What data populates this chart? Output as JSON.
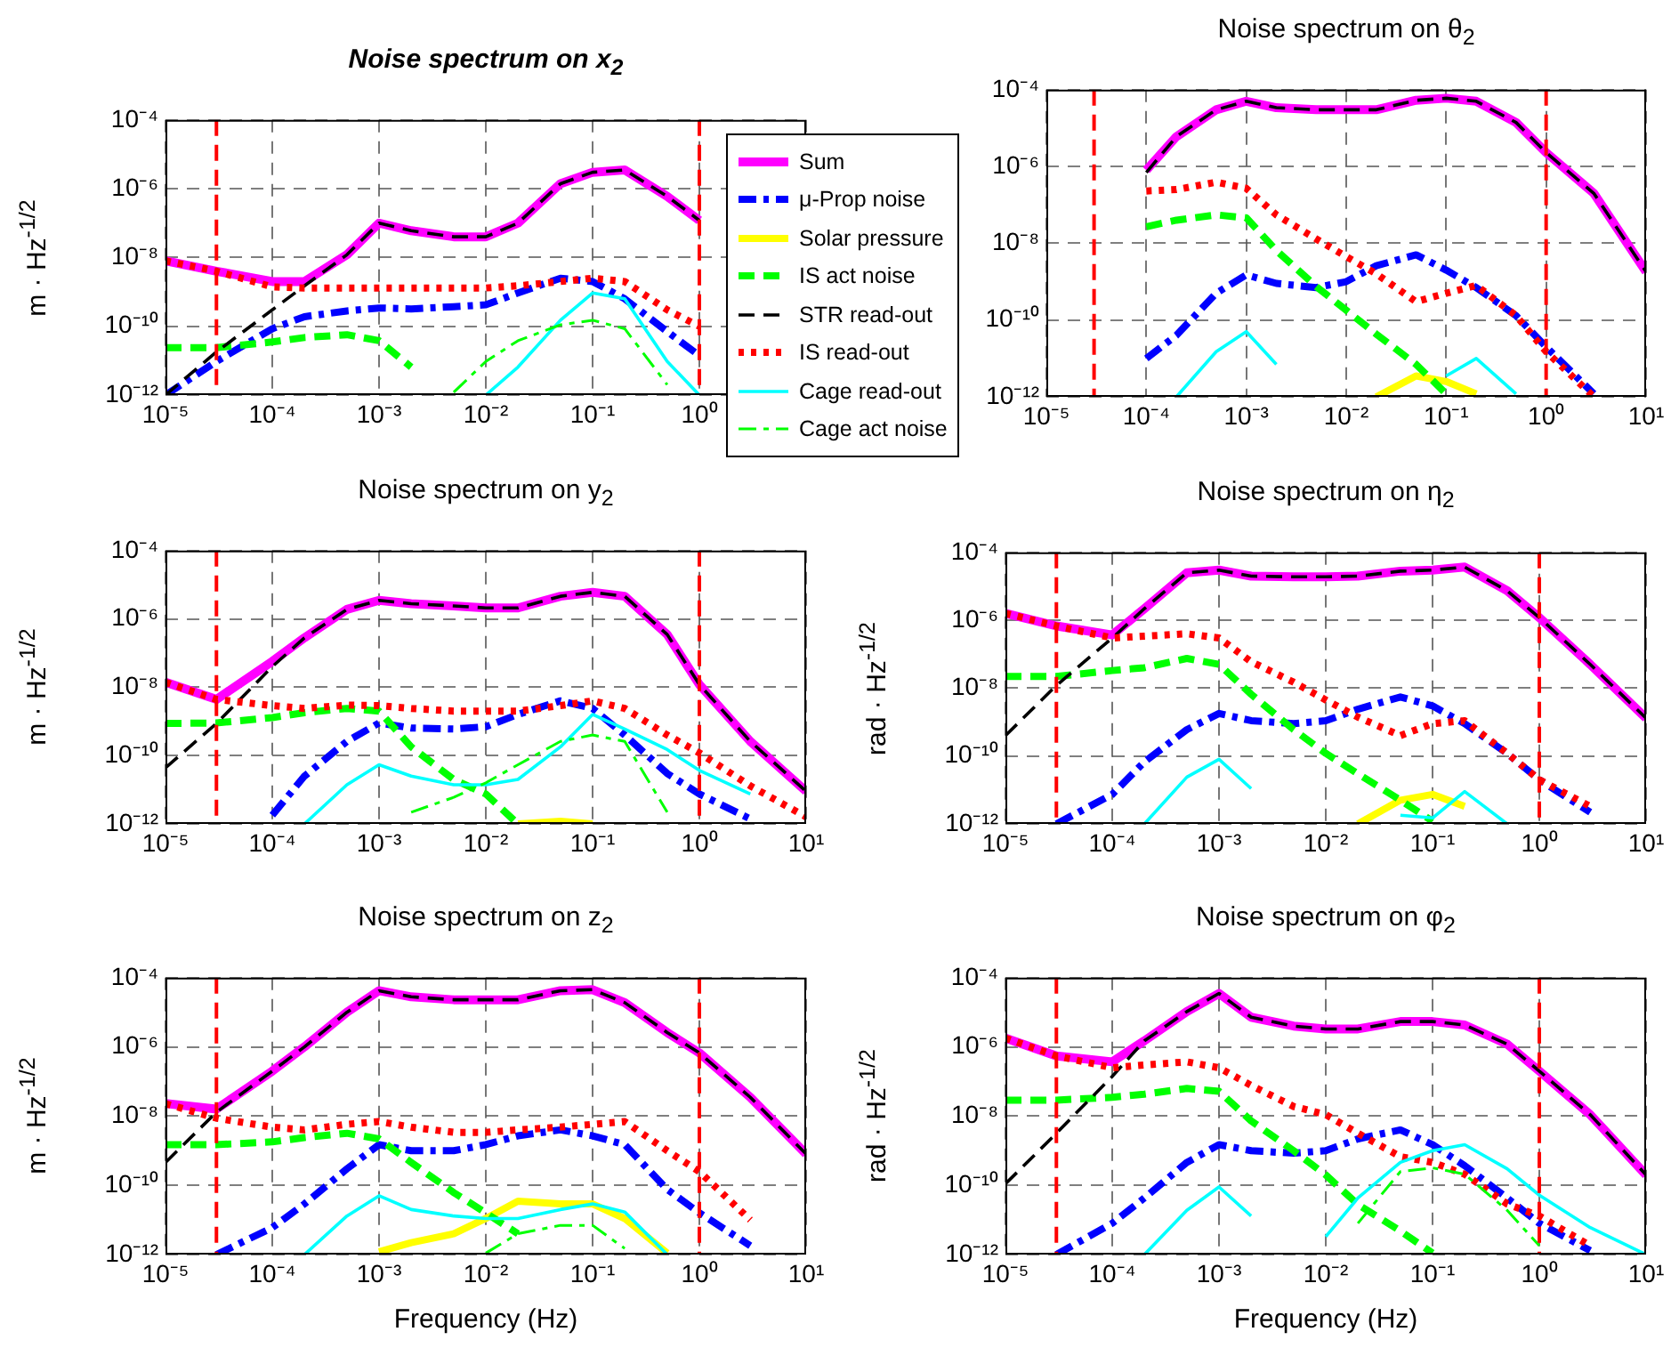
{
  "chart_data": [
    {
      "type": "line",
      "title": "Noise spectrum on x$_{2}$",
      "ylabel": "m · Hz$^{-1/2}$",
      "log": "xy",
      "grid": true,
      "marker": "none",
      "legend": "right",
      "xlim": [
        1e-05,
        10
      ],
      "ylim": [
        1e-12,
        0.0001
      ],
      "xticks": [
        {
          "value": 1e-05,
          "label": "10⁻⁵"
        },
        {
          "value": 0.0001,
          "label": "10⁻⁴"
        },
        {
          "value": 0.001,
          "label": "10⁻³"
        },
        {
          "value": 0.01,
          "label": "10⁻²"
        },
        {
          "value": 0.1,
          "label": "10⁻¹"
        },
        {
          "value": 1,
          "label": "10⁰"
        },
        {
          "value": 10,
          "label": null
        }
      ],
      "yticks": [
        {
          "value": 1e-12,
          "label": "10⁻¹²"
        },
        {
          "value": 1e-10,
          "label": "10⁻¹⁰"
        },
        {
          "value": 1e-08,
          "label": "10⁻⁸"
        },
        {
          "value": 1e-06,
          "label": "10⁻⁶"
        },
        {
          "value": 0.0001,
          "label": "10⁻⁴"
        }
      ],
      "ref_lines": [
        {
          "axis": "x",
          "value": 3e-05,
          "color": "#ff0000",
          "line_style": "dashed"
        },
        {
          "axis": "x",
          "value": 1,
          "color": "#ff0000",
          "line_style": "dashed"
        }
      ],
      "x": [
        1e-05,
        3e-05,
        0.0001,
        0.0002,
        0.0005,
        0.001,
        0.002,
        0.005,
        0.01,
        0.02,
        0.05,
        0.1,
        0.2,
        0.5,
        1
      ],
      "series": [
        {
          "name": "Sum",
          "color": "#ff00ff",
          "line_style": "solid",
          "values": [
            8e-09,
            4e-09,
            2e-09,
            2e-09,
            1.2e-08,
            1e-07,
            6e-08,
            4e-08,
            4e-08,
            1e-07,
            1.4e-06,
            3e-06,
            3.5e-06,
            6e-07,
            1.2e-07
          ]
        },
        {
          "name": "μ-Prop noise",
          "color": "#0000ff",
          "line_style": "dashdot",
          "values": [
            1e-12,
            9.5e-12,
            8.5e-11,
            1.9e-10,
            2.8e-10,
            3.4e-10,
            3.2e-10,
            3.7e-10,
            4.2e-10,
            9.3e-10,
            2.5e-09,
            2e-09,
            6.3e-10,
            7e-11,
            1.4e-11
          ]
        },
        {
          "name": "Solar pressure",
          "color": "#ffff00",
          "line_style": "solid",
          "values": [
            null,
            null,
            null,
            null,
            null,
            null,
            null,
            null,
            null,
            null,
            null,
            null,
            null,
            null,
            null
          ]
        },
        {
          "name": "IS act noise",
          "color": "#00ff00",
          "line_style": "dashed",
          "values": [
            2.4e-11,
            2.4e-11,
            3.5e-11,
            4.7e-11,
            5.7e-11,
            3.8e-11,
            6.5e-12,
            null,
            null,
            null,
            null,
            null,
            null,
            null,
            null
          ]
        },
        {
          "name": "STR read-out",
          "color": "#000000",
          "line_style": "dashed",
          "values": [
            1e-12,
            1.8e-11,
            3e-10,
            1.5e-09,
            1.2e-08,
            1e-07,
            6e-08,
            4e-08,
            4e-08,
            1e-07,
            1.4e-06,
            3e-06,
            3.5e-06,
            6e-07,
            1.2e-07
          ]
        },
        {
          "name": "IS read-out",
          "color": "#ff0000",
          "line_style": "dotted",
          "values": [
            8e-09,
            4e-09,
            1.4e-09,
            1.3e-09,
            1.3e-09,
            1.3e-09,
            1.3e-09,
            1.3e-09,
            1.3e-09,
            1.5e-09,
            2e-09,
            2.5e-09,
            2e-09,
            3e-10,
            1e-10
          ]
        },
        {
          "name": "Cage read-out",
          "color": "#00ffff",
          "line_style": "solid",
          "values": [
            null,
            null,
            null,
            null,
            null,
            null,
            null,
            null,
            1e-12,
            6.5e-12,
            1.5e-10,
            9.3e-10,
            6.3e-10,
            9.5e-12,
            1e-12
          ]
        },
        {
          "name": "Cage act noise",
          "color": "#00ff00",
          "line_style": "dashdot",
          "values": [
            null,
            null,
            null,
            null,
            null,
            null,
            null,
            1.2e-12,
            9.5e-12,
            3.8e-11,
            1.1e-10,
            1.5e-10,
            8.5e-11,
            2e-12,
            null
          ]
        }
      ]
    },
    {
      "type": "line",
      "title": "Noise spectrum on θ$_{2}$",
      "log": "xy",
      "grid": true,
      "marker": "none",
      "xlim": [
        1e-05,
        10
      ],
      "ylim": [
        1e-12,
        0.0001
      ],
      "xticks": [
        {
          "value": 1e-05,
          "label": "10⁻⁵"
        },
        {
          "value": 0.0001,
          "label": "10⁻⁴"
        },
        {
          "value": 0.001,
          "label": "10⁻³"
        },
        {
          "value": 0.01,
          "label": "10⁻²"
        },
        {
          "value": 0.1,
          "label": "10⁻¹"
        },
        {
          "value": 1,
          "label": "10⁰"
        },
        {
          "value": 10,
          "label": "10¹"
        }
      ],
      "yticks": [
        {
          "value": 1e-12,
          "label": "10⁻¹²"
        },
        {
          "value": 1e-10,
          "label": "10⁻¹⁰"
        },
        {
          "value": 1e-08,
          "label": "10⁻⁸"
        },
        {
          "value": 1e-06,
          "label": "10⁻⁶"
        },
        {
          "value": 0.0001,
          "label": "10⁻⁴"
        }
      ],
      "ref_lines": [
        {
          "axis": "x",
          "value": 3e-05,
          "color": "#ff0000",
          "line_style": "dashed"
        },
        {
          "axis": "x",
          "value": 1,
          "color": "#ff0000",
          "line_style": "dashed"
        }
      ],
      "x": [
        0.0001,
        0.0002,
        0.0005,
        0.001,
        0.002,
        0.005,
        0.01,
        0.02,
        0.05,
        0.1,
        0.2,
        0.5,
        1,
        3,
        10
      ],
      "series": [
        {
          "color": "#ff00ff",
          "line_style": "solid",
          "values": [
            8e-07,
            6e-06,
            3e-05,
            5e-05,
            3.4e-05,
            3e-05,
            3e-05,
            3e-05,
            5.3e-05,
            6e-05,
            5e-05,
            1.4e-05,
            2.3e-06,
            2e-07,
            1.8e-09
          ]
        },
        {
          "color": "#0000ff",
          "line_style": "dashdot",
          "values": [
            1e-11,
            4e-11,
            5e-10,
            1.5e-09,
            9e-10,
            7e-10,
            1e-09,
            2.6e-09,
            5e-09,
            2e-09,
            7e-10,
            1.3e-10,
            2e-11,
            1.2e-12,
            null
          ]
        },
        {
          "color": "#ffff00",
          "line_style": "solid",
          "values": [
            null,
            null,
            null,
            null,
            null,
            null,
            null,
            1e-12,
            3.5e-12,
            2.5e-12,
            1.2e-12,
            null,
            null,
            null,
            null
          ]
        },
        {
          "color": "#00ff00",
          "line_style": "dashed",
          "values": [
            2.7e-08,
            4e-08,
            5.5e-08,
            4.6e-08,
            6.5e-09,
            7.5e-10,
            1.8e-10,
            4.3e-11,
            7e-12,
            1.2e-12,
            null,
            null,
            null,
            null,
            null
          ]
        },
        {
          "color": "#000000",
          "line_style": "dashed",
          "values": [
            7e-07,
            6e-06,
            3e-05,
            5e-05,
            3.4e-05,
            3e-05,
            3e-05,
            3e-05,
            5.3e-05,
            6e-05,
            5e-05,
            1.4e-05,
            2.3e-06,
            2e-07,
            1.8e-09
          ]
        },
        {
          "color": "#ff0000",
          "line_style": "dotted",
          "values": [
            2.3e-07,
            2.5e-07,
            3.9e-07,
            2.7e-07,
            5.5e-08,
            1.3e-08,
            4.5e-09,
            1.6e-09,
            3e-10,
            5e-10,
            8e-10,
            1.3e-10,
            1.5e-11,
            1e-12,
            null
          ]
        },
        {
          "color": "#00ffff",
          "line_style": "solid",
          "values": [
            null,
            1e-12,
            1.5e-11,
            5e-11,
            7e-12,
            null,
            null,
            null,
            null,
            3.5e-12,
            1e-11,
            1.2e-12,
            null,
            null,
            null
          ]
        },
        {
          "color": "#00ff00",
          "line_style": "dashdot",
          "values": [
            null,
            null,
            null,
            null,
            null,
            null,
            null,
            null,
            null,
            null,
            null,
            null,
            null,
            null,
            null
          ]
        }
      ]
    },
    {
      "type": "line",
      "title": "Noise spectrum on y$_{2}$",
      "ylabel": "m · Hz$^{-1/2}$",
      "log": "xy",
      "grid": true,
      "marker": "none",
      "xlim": [
        1e-05,
        10
      ],
      "ylim": [
        1e-12,
        0.0001
      ],
      "xticks": [
        {
          "value": 1e-05,
          "label": "10⁻⁵"
        },
        {
          "value": 0.0001,
          "label": "10⁻⁴"
        },
        {
          "value": 0.001,
          "label": "10⁻³"
        },
        {
          "value": 0.01,
          "label": "10⁻²"
        },
        {
          "value": 0.1,
          "label": "10⁻¹"
        },
        {
          "value": 1,
          "label": "10⁰"
        },
        {
          "value": 10,
          "label": "10¹"
        }
      ],
      "yticks": [
        {
          "value": 1e-12,
          "label": "10⁻¹²"
        },
        {
          "value": 1e-10,
          "label": "10⁻¹⁰"
        },
        {
          "value": 1e-08,
          "label": "10⁻⁸"
        },
        {
          "value": 1e-06,
          "label": "10⁻⁶"
        },
        {
          "value": 0.0001,
          "label": "10⁻⁴"
        }
      ],
      "ref_lines": [
        {
          "axis": "x",
          "value": 3e-05,
          "color": "#ff0000",
          "line_style": "dashed"
        },
        {
          "axis": "x",
          "value": 1,
          "color": "#ff0000",
          "line_style": "dashed"
        }
      ],
      "x": [
        1e-05,
        3e-05,
        0.0001,
        0.0002,
        0.0005,
        0.001,
        0.002,
        0.005,
        0.01,
        0.02,
        0.05,
        0.1,
        0.2,
        0.5,
        1,
        3,
        10
      ],
      "series": [
        {
          "color": "#ff00ff",
          "line_style": "solid",
          "values": [
            1.4e-08,
            4.4e-09,
            5.7e-08,
            2.8e-07,
            1.9e-06,
            3.5e-06,
            2.8e-06,
            2.4e-06,
            2.1e-06,
            2.1e-06,
            4.6e-06,
            6e-06,
            4.6e-06,
            3.5e-07,
            1.2e-08,
            2.6e-10,
            9e-12
          ]
        },
        {
          "color": "#0000ff",
          "line_style": "dashdot",
          "values": [
            null,
            null,
            1.8e-12,
            2.5e-11,
            2.6e-10,
            9e-10,
            6.4e-10,
            6e-10,
            7e-10,
            1.6e-09,
            4e-09,
            2.4e-09,
            4e-10,
            3e-11,
            7.5e-12,
            1.4e-12,
            null
          ]
        },
        {
          "color": "#ffff00",
          "line_style": "solid",
          "values": [
            null,
            null,
            null,
            null,
            null,
            null,
            null,
            null,
            null,
            1e-12,
            1.2e-12,
            1e-12,
            null,
            null,
            null,
            null,
            null
          ]
        },
        {
          "color": "#00ff00",
          "line_style": "dashed",
          "values": [
            8.7e-10,
            9e-10,
            1.3e-09,
            1.8e-09,
            2.4e-09,
            2e-09,
            1.8e-10,
            2e-11,
            7.5e-12,
            1e-12,
            null,
            null,
            null,
            null,
            null,
            null,
            null
          ]
        },
        {
          "color": "#000000",
          "line_style": "dashed",
          "values": [
            4.4e-11,
            8.7e-10,
            4e-08,
            2.8e-07,
            1.9e-06,
            3.5e-06,
            2.8e-06,
            2.4e-06,
            2.1e-06,
            2.1e-06,
            4.6e-06,
            6e-06,
            4.6e-06,
            3.5e-07,
            1.2e-08,
            2.6e-10,
            9e-12
          ]
        },
        {
          "color": "#ff0000",
          "line_style": "dotted",
          "values": [
            1.4e-08,
            4.4e-09,
            2.9e-09,
            2.4e-09,
            3e-09,
            2.9e-09,
            2.4e-09,
            2e-09,
            2e-09,
            2e-09,
            2.9e-09,
            4e-09,
            2.4e-09,
            4e-10,
            1.2e-10,
            1.3e-11,
            1.6e-12
          ]
        },
        {
          "color": "#00ffff",
          "line_style": "solid",
          "values": [
            null,
            null,
            null,
            1e-12,
            1.4e-11,
            5.4e-11,
            2.5e-11,
            1.4e-11,
            1.4e-11,
            2e-11,
            1.8e-10,
            1.6e-09,
            6e-10,
            1.5e-10,
            3.7e-11,
            7.5e-12,
            null
          ]
        },
        {
          "color": "#00ff00",
          "line_style": "dashdot",
          "values": [
            null,
            null,
            null,
            null,
            null,
            null,
            2.2e-12,
            6e-12,
            1.6e-11,
            5.4e-11,
            2.6e-10,
            4e-10,
            2.6e-10,
            2.2e-12,
            null,
            null,
            null
          ]
        }
      ]
    },
    {
      "type": "line",
      "title": "Noise spectrum on η$_{2}$",
      "ylabel": "rad · Hz$^{-1/2}$",
      "log": "xy",
      "grid": true,
      "marker": "none",
      "xlim": [
        1e-05,
        10
      ],
      "ylim": [
        1e-12,
        0.0001
      ],
      "xticks": [
        {
          "value": 1e-05,
          "label": "10⁻⁵"
        },
        {
          "value": 0.0001,
          "label": "10⁻⁴"
        },
        {
          "value": 0.001,
          "label": "10⁻³"
        },
        {
          "value": 0.01,
          "label": "10⁻²"
        },
        {
          "value": 0.1,
          "label": "10⁻¹"
        },
        {
          "value": 1,
          "label": "10⁰"
        },
        {
          "value": 10,
          "label": "10¹"
        }
      ],
      "yticks": [
        {
          "value": 1e-12,
          "label": "10⁻¹²"
        },
        {
          "value": 1e-10,
          "label": "10⁻¹⁰"
        },
        {
          "value": 1e-08,
          "label": "10⁻⁸"
        },
        {
          "value": 1e-06,
          "label": "10⁻⁶"
        },
        {
          "value": 0.0001,
          "label": "10⁻⁴"
        }
      ],
      "ref_lines": [
        {
          "axis": "x",
          "value": 3e-05,
          "color": "#ff0000",
          "line_style": "dashed"
        },
        {
          "axis": "x",
          "value": 1,
          "color": "#ff0000",
          "line_style": "dashed"
        }
      ],
      "x": [
        1e-05,
        3e-05,
        0.0001,
        0.0002,
        0.0005,
        0.001,
        0.002,
        0.005,
        0.01,
        0.02,
        0.05,
        0.1,
        0.2,
        0.5,
        1,
        3,
        10
      ],
      "series": [
        {
          "color": "#ff00ff",
          "line_style": "solid",
          "values": [
            1.6e-06,
            6.8e-07,
            3.7e-07,
            2.2e-06,
            2.5e-05,
            3e-05,
            2e-05,
            1.9e-05,
            1.9e-05,
            2e-05,
            2.8e-05,
            3e-05,
            3.7e-05,
            7.4e-06,
            1.2e-06,
            5e-08,
            1.3e-09
          ]
        },
        {
          "color": "#0000ff",
          "line_style": "dashdot",
          "values": [
            null,
            1e-12,
            7.4e-12,
            6.7e-11,
            6e-10,
            1.8e-09,
            1.1e-09,
            9e-10,
            1.1e-09,
            2.4e-09,
            5.5e-09,
            3e-09,
            9e-10,
            1.2e-10,
            2e-11,
            2.2e-12,
            null
          ]
        },
        {
          "color": "#ffff00",
          "line_style": "solid",
          "values": [
            null,
            null,
            null,
            null,
            null,
            null,
            null,
            null,
            null,
            1e-12,
            5e-12,
            7.4e-12,
            3.3e-12,
            null,
            null,
            null,
            null
          ]
        },
        {
          "color": "#00ff00",
          "line_style": "dashed",
          "values": [
            2.2e-08,
            2.2e-08,
            3.3e-08,
            4e-08,
            7.5e-08,
            5e-08,
            6.6e-09,
            6e-10,
            1.2e-10,
            3e-11,
            5e-12,
            1.2e-12,
            null,
            null,
            null,
            null,
            null
          ]
        },
        {
          "color": "#000000",
          "line_style": "dashed",
          "values": [
            4e-10,
            1.2e-08,
            3e-07,
            2.2e-06,
            2.5e-05,
            3e-05,
            2e-05,
            1.9e-05,
            1.9e-05,
            2e-05,
            2.8e-05,
            3e-05,
            3.7e-05,
            7.4e-06,
            1.2e-06,
            5e-08,
            1.3e-09
          ]
        },
        {
          "color": "#ff0000",
          "line_style": "dotted",
          "values": [
            1.6e-06,
            6.8e-07,
            3e-07,
            3.4e-07,
            4e-07,
            3e-07,
            6e-08,
            1.5e-08,
            4.5e-09,
            1.4e-09,
            4e-10,
            9e-10,
            1.1e-09,
            1.2e-10,
            2e-11,
            3.3e-12,
            null
          ]
        },
        {
          "color": "#00ffff",
          "line_style": "solid",
          "values": [
            null,
            null,
            null,
            1e-12,
            2.4e-11,
            8e-11,
            1.1e-11,
            null,
            null,
            null,
            1.8e-12,
            1.5e-12,
            9e-12,
            1e-12,
            null,
            null,
            null
          ]
        },
        {
          "color": "#00ff00",
          "line_style": "dashdot",
          "values": [
            null,
            null,
            null,
            null,
            null,
            null,
            null,
            null,
            null,
            null,
            null,
            null,
            null,
            null,
            null,
            null,
            null
          ]
        }
      ]
    },
    {
      "type": "line",
      "title": "Noise spectrum on z$_{2}$",
      "xlabel": "Frequency (Hz)",
      "ylabel": "m · Hz$^{-1/2}$",
      "log": "xy",
      "grid": true,
      "marker": "none",
      "xlim": [
        1e-05,
        10
      ],
      "ylim": [
        1e-12,
        0.0001
      ],
      "xticks": [
        {
          "value": 1e-05,
          "label": "10⁻⁵"
        },
        {
          "value": 0.0001,
          "label": "10⁻⁴"
        },
        {
          "value": 0.001,
          "label": "10⁻³"
        },
        {
          "value": 0.01,
          "label": "10⁻²"
        },
        {
          "value": 0.1,
          "label": "10⁻¹"
        },
        {
          "value": 1,
          "label": "10⁰"
        },
        {
          "value": 10,
          "label": "10¹"
        }
      ],
      "yticks": [
        {
          "value": 1e-12,
          "label": "10⁻¹²"
        },
        {
          "value": 1e-10,
          "label": "10⁻¹⁰"
        },
        {
          "value": 1e-08,
          "label": "10⁻⁸"
        },
        {
          "value": 1e-06,
          "label": "10⁻⁶"
        },
        {
          "value": 0.0001,
          "label": "10⁻⁴"
        }
      ],
      "ref_lines": [
        {
          "axis": "x",
          "value": 3e-05,
          "color": "#ff0000",
          "line_style": "dashed"
        },
        {
          "axis": "x",
          "value": 1,
          "color": "#ff0000",
          "line_style": "dashed"
        }
      ],
      "x": [
        1e-05,
        3e-05,
        0.0001,
        0.0002,
        0.0005,
        0.001,
        0.002,
        0.005,
        0.01,
        0.02,
        0.05,
        0.1,
        0.2,
        0.5,
        1,
        3,
        10
      ],
      "series": [
        {
          "color": "#ff00ff",
          "line_style": "solid",
          "values": [
            2.3e-08,
            1.6e-08,
            2e-07,
            1e-06,
            1e-05,
            4.2e-05,
            2.8e-05,
            2.3e-05,
            2.3e-05,
            2.3e-05,
            4.2e-05,
            4.5e-05,
            1.9e-05,
            2.6e-06,
            6.7e-07,
            3.5e-08,
            8e-10
          ]
        },
        {
          "color": "#0000ff",
          "line_style": "dashdot",
          "values": [
            null,
            1e-12,
            6e-12,
            2.9e-11,
            3e-10,
            1.5e-09,
            1e-09,
            1e-09,
            1.5e-09,
            2.7e-09,
            4e-09,
            2.7e-09,
            1.5e-09,
            7.6e-11,
            1.6e-11,
            1.8e-12,
            null
          ]
        },
        {
          "color": "#ffff00",
          "line_style": "solid",
          "values": [
            null,
            null,
            null,
            null,
            null,
            1.2e-12,
            2.2e-12,
            4e-12,
            1.1e-11,
            3.5e-11,
            2.9e-11,
            2.9e-11,
            1.1e-11,
            1.1e-12,
            null,
            null,
            null
          ]
        },
        {
          "color": "#00ff00",
          "line_style": "dashed",
          "values": [
            1.5e-09,
            1.5e-09,
            1.8e-09,
            2.4e-09,
            3.2e-09,
            2.2e-09,
            4.6e-10,
            6.2e-11,
            1.6e-11,
            4e-12,
            null,
            null,
            null,
            null,
            null,
            null,
            null
          ]
        },
        {
          "color": "#000000",
          "line_style": "dashed",
          "values": [
            4.6e-10,
            1.3e-08,
            2e-07,
            1e-06,
            1e-05,
            4.2e-05,
            2.8e-05,
            2.3e-05,
            2.3e-05,
            2.3e-05,
            4.2e-05,
            4.5e-05,
            1.9e-05,
            2.6e-06,
            6.7e-07,
            3.5e-08,
            8e-10
          ]
        },
        {
          "color": "#ff0000",
          "line_style": "dotted",
          "values": [
            2.3e-08,
            8.7e-09,
            4.8e-09,
            4e-09,
            5.8e-09,
            7e-09,
            4.8e-09,
            3.4e-09,
            3.4e-09,
            4e-09,
            4.8e-09,
            5.8e-09,
            7e-09,
            1e-09,
            2.5e-10,
            1e-11,
            null
          ]
        },
        {
          "color": "#00ffff",
          "line_style": "solid",
          "values": [
            null,
            null,
            null,
            1e-12,
            1.3e-11,
            5e-11,
            2e-11,
            1.3e-11,
            1.1e-11,
            1.1e-11,
            2e-11,
            2.9e-11,
            1.7e-11,
            1e-12,
            null,
            null,
            null
          ]
        },
        {
          "color": "#00ff00",
          "line_style": "dashdot",
          "values": [
            null,
            null,
            null,
            null,
            null,
            null,
            null,
            null,
            1.1e-12,
            4e-12,
            7e-12,
            7e-12,
            1.5e-12,
            null,
            null,
            null,
            null
          ]
        }
      ]
    },
    {
      "type": "line",
      "title": "Noise spectrum on φ$_{2}$",
      "xlabel": "Frequency (Hz)",
      "ylabel": "rad · Hz$^{-1/2}$",
      "log": "xy",
      "grid": true,
      "marker": "none",
      "xlim": [
        1e-05,
        10
      ],
      "ylim": [
        1e-12,
        0.0001
      ],
      "xticks": [
        {
          "value": 1e-05,
          "label": "10⁻⁵"
        },
        {
          "value": 0.0001,
          "label": "10⁻⁴"
        },
        {
          "value": 0.001,
          "label": "10⁻³"
        },
        {
          "value": 0.01,
          "label": "10⁻²"
        },
        {
          "value": 0.1,
          "label": "10⁻¹"
        },
        {
          "value": 1,
          "label": "10⁰"
        },
        {
          "value": 10,
          "label": "10¹"
        }
      ],
      "yticks": [
        {
          "value": 1e-12,
          "label": "10⁻¹²"
        },
        {
          "value": 1e-10,
          "label": "10⁻¹⁰"
        },
        {
          "value": 1e-08,
          "label": "10⁻⁸"
        },
        {
          "value": 1e-06,
          "label": "10⁻⁶"
        },
        {
          "value": 0.0001,
          "label": "10⁻⁴"
        }
      ],
      "ref_lines": [
        {
          "axis": "x",
          "value": 3e-05,
          "color": "#ff0000",
          "line_style": "dashed"
        },
        {
          "axis": "x",
          "value": 1,
          "color": "#ff0000",
          "line_style": "dashed"
        }
      ],
      "x": [
        1e-05,
        3e-05,
        0.0001,
        0.0002,
        0.0005,
        0.001,
        0.002,
        0.005,
        0.01,
        0.02,
        0.05,
        0.1,
        0.2,
        0.5,
        1,
        3,
        10
      ],
      "series": [
        {
          "color": "#ff00ff",
          "line_style": "solid",
          "values": [
            1.8e-06,
            5.5e-07,
            3.7e-07,
            1.5e-06,
            1.05e-05,
            3.5e-05,
            7.2e-06,
            4e-06,
            3.3e-06,
            3.3e-06,
            5.4e-06,
            5.4e-06,
            4.3e-06,
            1.2e-06,
            2e-07,
            1.1e-08,
            2e-10
          ]
        },
        {
          "color": "#0000ff",
          "line_style": "dashdot",
          "values": [
            null,
            1e-12,
            8e-12,
            4.3e-11,
            4.6e-10,
            1.5e-09,
            1e-09,
            8.5e-10,
            1e-09,
            2.2e-09,
            4e-09,
            1.5e-09,
            3.7e-10,
            4.3e-11,
            8e-12,
            1.3e-12,
            null
          ]
        },
        {
          "color": "#ffff00",
          "line_style": "solid",
          "values": [
            null,
            null,
            null,
            null,
            null,
            null,
            null,
            null,
            null,
            null,
            null,
            null,
            null,
            null,
            null,
            null,
            null
          ]
        },
        {
          "color": "#00ff00",
          "line_style": "dashed",
          "values": [
            2.9e-08,
            2.9e-08,
            3.5e-08,
            4.3e-08,
            6.3e-08,
            5.2e-08,
            7.3e-09,
            1e-09,
            2e-10,
            2.8e-11,
            4.8e-12,
            1.1e-12,
            null,
            null,
            null,
            null,
            null
          ]
        },
        {
          "color": "#000000",
          "line_style": "dashed",
          "values": [
            1.1e-10,
            3.2e-09,
            1.4e-07,
            1.5e-06,
            1.05e-05,
            3.5e-05,
            7.2e-06,
            4e-06,
            3.3e-06,
            3.3e-06,
            5.4e-06,
            5.4e-06,
            4.3e-06,
            1.2e-06,
            2e-07,
            1.1e-08,
            2e-10
          ]
        },
        {
          "color": "#ff0000",
          "line_style": "dotted",
          "values": [
            1.8e-06,
            5.5e-07,
            2.5e-07,
            3e-07,
            3.7e-07,
            2.5e-07,
            7.7e-08,
            1.9e-08,
            1.1e-08,
            3.2e-09,
            6.7e-10,
            4.6e-10,
            2.1e-10,
            2.9e-11,
            1.3e-11,
            1.8e-12,
            null
          ]
        },
        {
          "color": "#00ffff",
          "line_style": "solid",
          "values": [
            null,
            null,
            null,
            1e-12,
            1.9e-11,
            9e-11,
            1.3e-11,
            null,
            3.3e-12,
            4.3e-11,
            4.6e-10,
            1e-09,
            1.5e-09,
            3e-10,
            5.2e-11,
            6e-12,
            1e-12
          ]
        },
        {
          "color": "#00ff00",
          "line_style": "dashdot",
          "values": [
            null,
            null,
            null,
            null,
            null,
            null,
            null,
            null,
            null,
            8e-12,
            2.5e-10,
            3.2e-10,
            2.1e-10,
            1.9e-11,
            1.8e-12,
            null,
            null
          ]
        }
      ]
    }
  ]
}
